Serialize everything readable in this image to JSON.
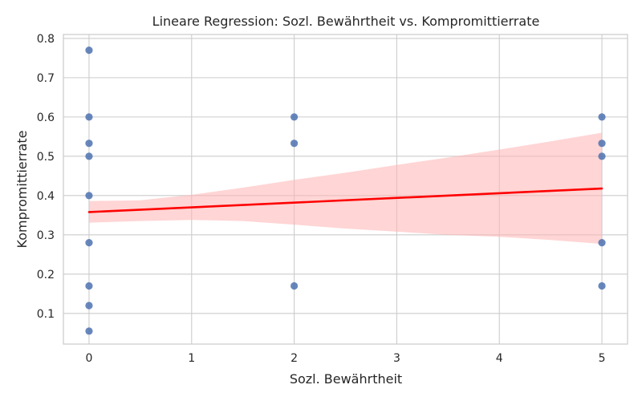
{
  "chart_data": {
    "type": "scatter",
    "title": "Lineare Regression: Sozl. Bewährtheit vs. Kompromittierrate",
    "xlabel": "Sozl. Bewährtheit",
    "ylabel": "Kompromittierrate",
    "xlim": [
      -0.25,
      5.25
    ],
    "ylim": [
      0.022,
      0.81
    ],
    "xticks": [
      "0",
      "1",
      "2",
      "3",
      "4",
      "5"
    ],
    "yticks": [
      "0.1",
      "0.2",
      "0.3",
      "0.4",
      "0.5",
      "0.6",
      "0.7",
      "0.8"
    ],
    "grid": true,
    "colors": {
      "points": "#4c72b0",
      "regression_line": "#ff0000",
      "confidence_band": "#ffb3b3",
      "grid": "#cccccc",
      "spine": "#cccccc"
    },
    "points": [
      {
        "x": 0,
        "y": 0.77
      },
      {
        "x": 0,
        "y": 0.6
      },
      {
        "x": 0,
        "y": 0.533
      },
      {
        "x": 0,
        "y": 0.5
      },
      {
        "x": 0,
        "y": 0.4
      },
      {
        "x": 0,
        "y": 0.28
      },
      {
        "x": 0,
        "y": 0.17
      },
      {
        "x": 0,
        "y": 0.12
      },
      {
        "x": 0,
        "y": 0.055
      },
      {
        "x": 2,
        "y": 0.6
      },
      {
        "x": 2,
        "y": 0.533
      },
      {
        "x": 2,
        "y": 0.17
      },
      {
        "x": 5,
        "y": 0.6
      },
      {
        "x": 5,
        "y": 0.533
      },
      {
        "x": 5,
        "y": 0.5
      },
      {
        "x": 5,
        "y": 0.28
      },
      {
        "x": 5,
        "y": 0.17
      }
    ],
    "regression": {
      "x": [
        0,
        5
      ],
      "y": [
        0.358,
        0.418
      ]
    },
    "confidence_band": {
      "x": [
        0,
        0.5,
        1,
        1.5,
        2,
        2.5,
        3,
        3.5,
        4,
        4.5,
        5
      ],
      "upper": [
        0.386,
        0.388,
        0.402,
        0.42,
        0.44,
        0.458,
        0.478,
        0.497,
        0.517,
        0.538,
        0.56
      ],
      "lower": [
        0.331,
        0.335,
        0.338,
        0.335,
        0.326,
        0.316,
        0.308,
        0.3,
        0.295,
        0.287,
        0.277
      ]
    }
  }
}
